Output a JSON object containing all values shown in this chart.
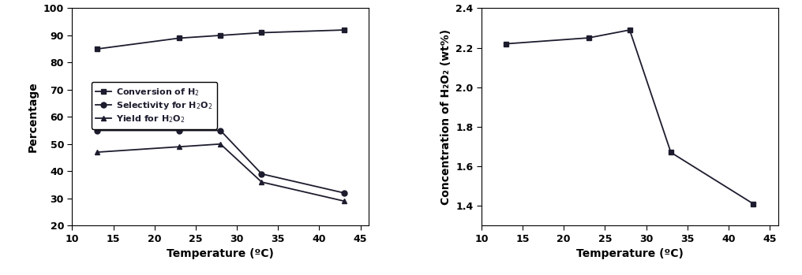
{
  "left_chart": {
    "x": [
      13,
      23,
      28,
      33,
      43
    ],
    "conversion": [
      85,
      89,
      90,
      91,
      92
    ],
    "selectivity": [
      55,
      55,
      55,
      39,
      32
    ],
    "yield": [
      47,
      49,
      50,
      36,
      29
    ],
    "xlabel": "Temperature (ºC)",
    "ylabel": "Percentage",
    "xlim": [
      10,
      46
    ],
    "ylim": [
      20,
      100
    ],
    "xticks": [
      10,
      15,
      20,
      25,
      30,
      35,
      40,
      45
    ],
    "yticks": [
      20,
      30,
      40,
      50,
      60,
      70,
      80,
      90,
      100
    ]
  },
  "right_chart": {
    "x": [
      13,
      23,
      28,
      33,
      43
    ],
    "concentration": [
      2.22,
      2.25,
      2.29,
      1.67,
      1.41
    ],
    "xlabel": "Temperature (ºC)",
    "ylabel": "Concentration of H₂O₂ (wt%)",
    "xlim": [
      10,
      46
    ],
    "ylim": [
      1.3,
      2.4
    ],
    "xticks": [
      10,
      15,
      20,
      25,
      30,
      35,
      40,
      45
    ],
    "yticks": [
      1.4,
      1.6,
      1.8,
      2.0,
      2.2,
      2.4
    ]
  },
  "line_color": "#1c1c2e",
  "marker_square": "s",
  "marker_circle": "o",
  "marker_triangle": "^",
  "markersize": 5,
  "linewidth": 1.3,
  "legend_entries": [
    "Conversion of H$_2$",
    "Selectivity for H$_2$O$_2$",
    "Yield for H$_2$O$_2$"
  ],
  "figsize": [
    10.16,
    3.49
  ],
  "dpi": 100
}
